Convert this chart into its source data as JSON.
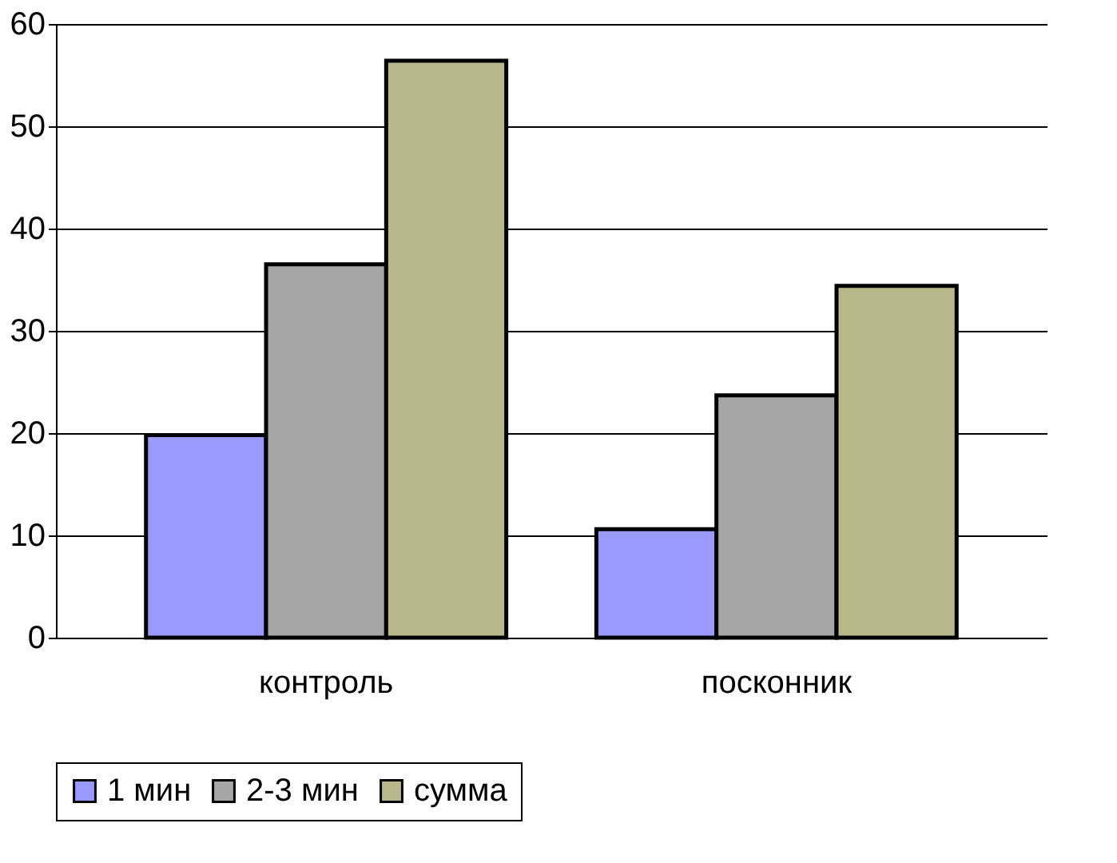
{
  "chart_data": {
    "type": "bar",
    "categories": [
      "контроль",
      "посконник"
    ],
    "series": [
      {
        "name": "1 мин",
        "color": "#9999ff",
        "values": [
          19.8,
          10.6
        ]
      },
      {
        "name": "2-3 мин",
        "color": "#a6a6a6",
        "values": [
          36.5,
          23.7
        ]
      },
      {
        "name": "сумма",
        "color": "#b8b88a",
        "values": [
          56.4,
          34.4
        ]
      }
    ],
    "ylim": [
      0,
      60
    ],
    "yticks": [
      0,
      10,
      20,
      30,
      40,
      50,
      60
    ],
    "grid": "y",
    "legend": "bottom"
  }
}
